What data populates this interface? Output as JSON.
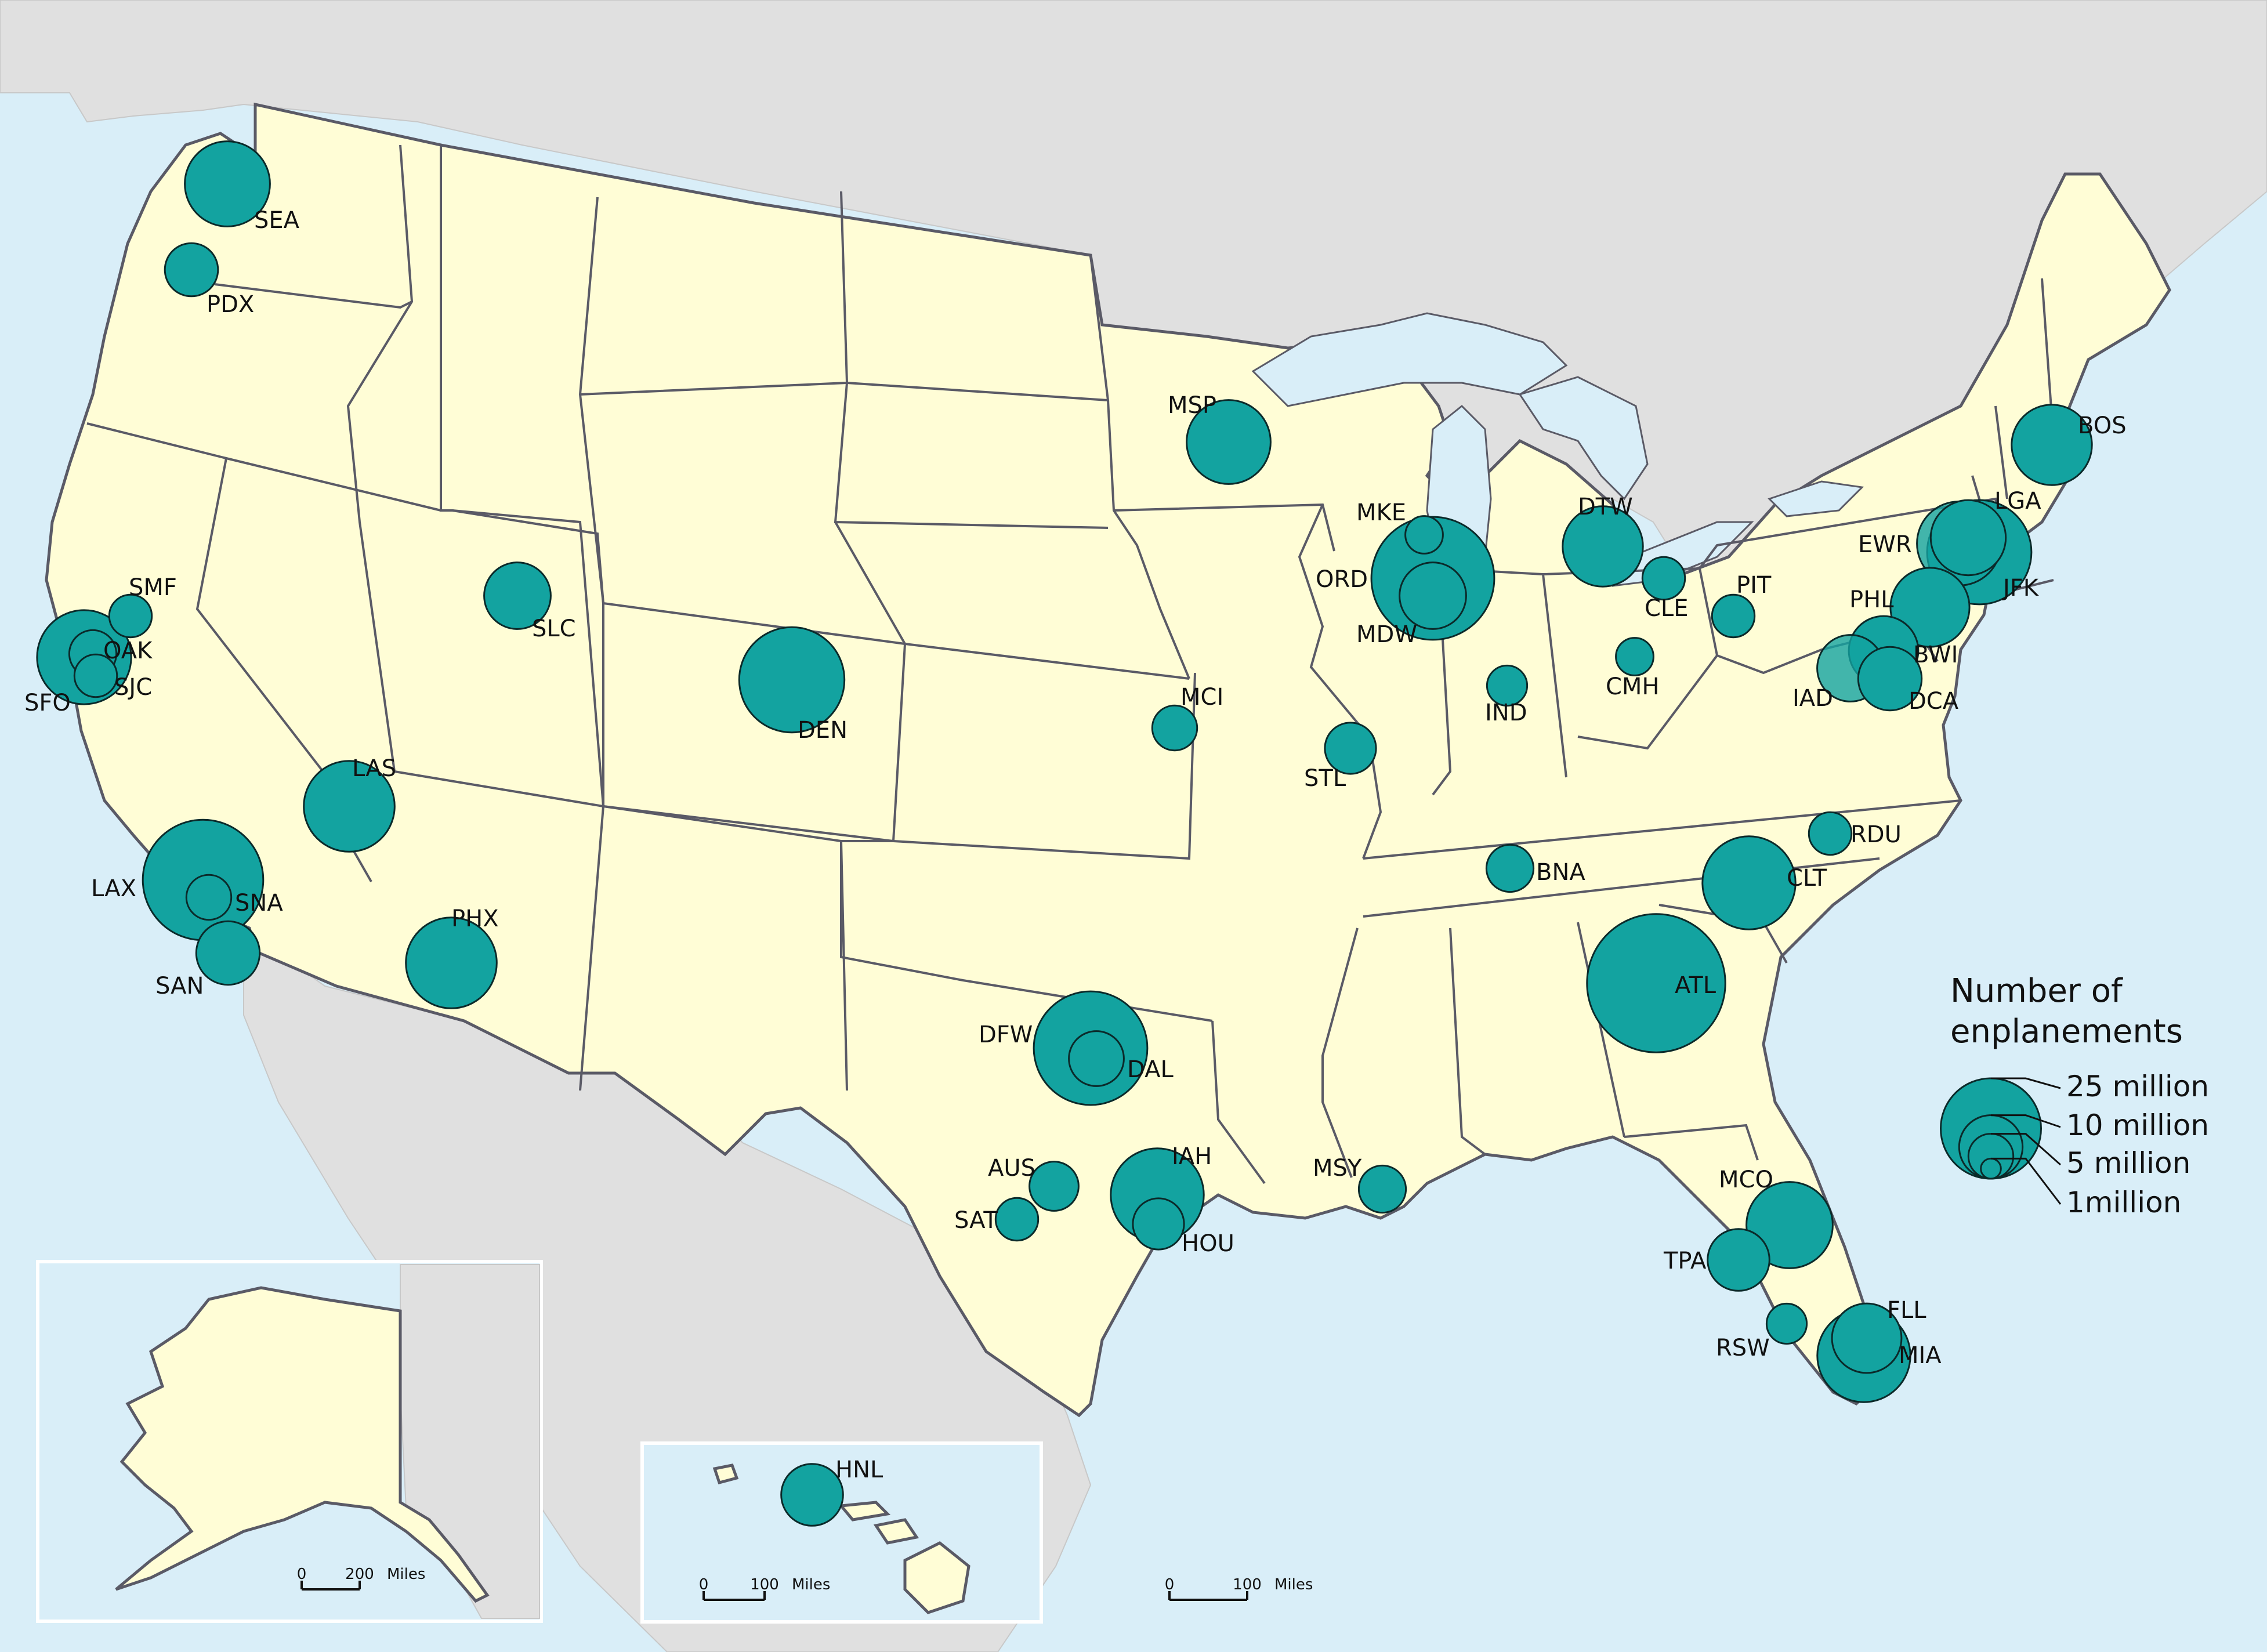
{
  "legend": {
    "title_line1": "Number of",
    "title_line2": "enplanements",
    "sizes": [
      {
        "label": "25 million",
        "value": 25
      },
      {
        "label": "10 million",
        "value": 10
      },
      {
        "label": "5 million",
        "value": 5
      },
      {
        "label": "1million",
        "value": 1
      }
    ]
  },
  "scalebars": {
    "alaska": {
      "zero": "0",
      "dist": "200",
      "unit": "Miles"
    },
    "hawaii": {
      "zero": "0",
      "dist": "100",
      "unit": "Miles"
    },
    "conus": {
      "zero": "0",
      "dist": "100",
      "unit": "Miles"
    }
  },
  "colors": {
    "ocean": "#d9eef8",
    "us_land": "#fffdd6",
    "neighbor_land": "#e0e0e0",
    "airport_fill": "#13a3a0",
    "border": "#5a5a66"
  },
  "airports": [
    {
      "code": "SEA",
      "enplanements_million": 18.0
    },
    {
      "code": "PDX",
      "enplanements_million": 7.0
    },
    {
      "code": "SMF",
      "enplanements_million": 4.5
    },
    {
      "code": "OAK",
      "enplanements_million": 5.5
    },
    {
      "code": "SFO",
      "enplanements_million": 22.0
    },
    {
      "code": "SJC",
      "enplanements_million": 4.5
    },
    {
      "code": "LAS",
      "enplanements_million": 20.5
    },
    {
      "code": "LAX",
      "enplanements_million": 36.0
    },
    {
      "code": "SNA",
      "enplanements_million": 5.0
    },
    {
      "code": "SAN",
      "enplanements_million": 10.0
    },
    {
      "code": "SLC",
      "enplanements_million": 11.0
    },
    {
      "code": "PHX",
      "enplanements_million": 20.5
    },
    {
      "code": "DEN",
      "enplanements_million": 27.5
    },
    {
      "code": "MSP",
      "enplanements_million": 17.5
    },
    {
      "code": "MCI",
      "enplanements_million": 5.0
    },
    {
      "code": "DFW",
      "enplanements_million": 32.0
    },
    {
      "code": "DAL",
      "enplanements_million": 7.5
    },
    {
      "code": "AUS",
      "enplanements_million": 6.0
    },
    {
      "code": "SAT",
      "enplanements_million": 4.5
    },
    {
      "code": "IAH",
      "enplanements_million": 21.5
    },
    {
      "code": "HOU",
      "enplanements_million": 6.5
    },
    {
      "code": "MSY",
      "enplanements_million": 5.5
    },
    {
      "code": "STL",
      "enplanements_million": 6.5
    },
    {
      "code": "MKE",
      "enplanements_million": 3.5
    },
    {
      "code": "ORD",
      "enplanements_million": 37.5
    },
    {
      "code": "MDW",
      "enplanements_million": 11.0
    },
    {
      "code": "IND",
      "enplanements_million": 4.0
    },
    {
      "code": "DTW",
      "enplanements_million": 16.0
    },
    {
      "code": "CLE",
      "enplanements_million": 4.5
    },
    {
      "code": "CMH",
      "enplanements_million": 3.5
    },
    {
      "code": "PIT",
      "enplanements_million": 4.5
    },
    {
      "code": "BNA",
      "enplanements_million": 5.5
    },
    {
      "code": "ATL",
      "enplanements_million": 47.5
    },
    {
      "code": "CLT",
      "enplanements_million": 21.5
    },
    {
      "code": "RDU",
      "enplanements_million": 4.5
    },
    {
      "code": "BOS",
      "enplanements_million": 16.0
    },
    {
      "code": "LGA",
      "enplanements_million": 14.0
    },
    {
      "code": "EWR",
      "enplanements_million": 17.5
    },
    {
      "code": "JFK",
      "enplanements_million": 27.0
    },
    {
      "code": "PHL",
      "enplanements_million": 15.5
    },
    {
      "code": "BWI",
      "enplanements_million": 12.0
    },
    {
      "code": "IAD",
      "enplanements_million": 11.0
    },
    {
      "code": "DCA",
      "enplanements_million": 10.0
    },
    {
      "code": "MCO",
      "enplanements_million": 18.5
    },
    {
      "code": "TPA",
      "enplanements_million": 9.5
    },
    {
      "code": "FLL",
      "enplanements_million": 12.0
    },
    {
      "code": "MIA",
      "enplanements_million": 21.5
    },
    {
      "code": "RSW",
      "enplanements_million": 4.0
    },
    {
      "code": "HNL",
      "enplanements_million": 9.5
    }
  ]
}
